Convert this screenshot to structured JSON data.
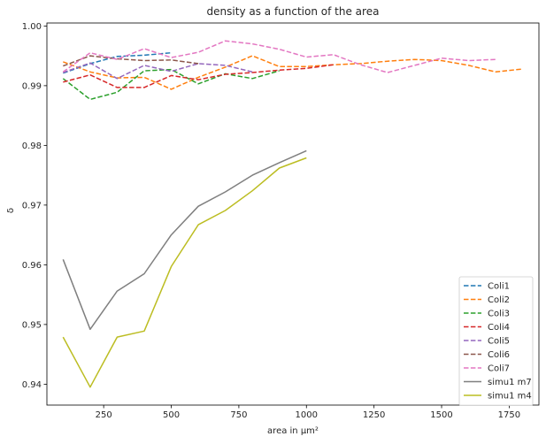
{
  "chart_data": {
    "type": "line",
    "title": "density as a function of the area",
    "xlabel": "area in μm²",
    "ylabel": "δ",
    "xlim": [
      40,
      1860
    ],
    "ylim": [
      0.9365,
      1.0005
    ],
    "xticks": [
      250,
      500,
      750,
      1000,
      1250,
      1500,
      1750
    ],
    "xtick_labels": [
      "250",
      "500",
      "750",
      "1000",
      "1250",
      "1500",
      "1750"
    ],
    "yticks": [
      0.94,
      0.95,
      0.96,
      0.97,
      0.98,
      0.99,
      1.0
    ],
    "ytick_labels": [
      "0.94",
      "0.95",
      "0.96",
      "0.97",
      "0.98",
      "0.99",
      "1.00"
    ],
    "grid": false,
    "legend_position": "lower-right",
    "series": [
      {
        "name": "Coli1",
        "style": "dashed",
        "color": "#1f77b4",
        "x": [
          100,
          200,
          300,
          400,
          500
        ],
        "y": [
          0.9921,
          0.9937,
          0.9949,
          0.9951,
          0.9955
        ]
      },
      {
        "name": "Coli2",
        "style": "dashed",
        "color": "#ff7f0e",
        "x": [
          100,
          200,
          300,
          400,
          500,
          600,
          700,
          800,
          900,
          1000,
          1100,
          1200,
          1300,
          1400,
          1500,
          1600,
          1700,
          1800
        ],
        "y": [
          0.994,
          0.9923,
          0.9913,
          0.9914,
          0.9894,
          0.9914,
          0.9931,
          0.995,
          0.9932,
          0.9932,
          0.9935,
          0.9937,
          0.9941,
          0.9944,
          0.9942,
          0.9934,
          0.9923,
          0.9928
        ]
      },
      {
        "name": "Coli3",
        "style": "dashed",
        "color": "#2ca02c",
        "x": [
          100,
          200,
          300,
          400,
          500,
          600,
          700,
          800,
          900
        ],
        "y": [
          0.9912,
          0.9877,
          0.9889,
          0.9925,
          0.9927,
          0.9903,
          0.992,
          0.9912,
          0.9925
        ]
      },
      {
        "name": "Coli4",
        "style": "dashed",
        "color": "#d62728",
        "x": [
          100,
          200,
          300,
          400,
          500,
          600,
          700,
          800,
          900,
          1000,
          1100
        ],
        "y": [
          0.9906,
          0.9918,
          0.9897,
          0.9897,
          0.9917,
          0.991,
          0.9919,
          0.9922,
          0.9926,
          0.9929,
          0.9935
        ]
      },
      {
        "name": "Coli5",
        "style": "dashed",
        "color": "#9467bd",
        "x": [
          100,
          200,
          300,
          400,
          500,
          600,
          700,
          800
        ],
        "y": [
          0.9922,
          0.9938,
          0.9912,
          0.9934,
          0.9924,
          0.9937,
          0.9934,
          0.9923
        ]
      },
      {
        "name": "Coli6",
        "style": "dashed",
        "color": "#8c564b",
        "x": [
          100,
          200,
          300,
          400,
          500,
          600
        ],
        "y": [
          0.9933,
          0.995,
          0.9945,
          0.9942,
          0.9943,
          0.9937
        ]
      },
      {
        "name": "Coli7",
        "style": "dashed",
        "color": "#e377c2",
        "x": [
          100,
          200,
          300,
          400,
          500,
          600,
          700,
          800,
          900,
          1000,
          1100,
          1200,
          1300,
          1400,
          1500,
          1600,
          1700
        ],
        "y": [
          0.9923,
          0.9955,
          0.9944,
          0.9962,
          0.9947,
          0.9956,
          0.9975,
          0.997,
          0.9961,
          0.9948,
          0.9952,
          0.9935,
          0.9922,
          0.9934,
          0.9946,
          0.9942,
          0.9944
        ]
      },
      {
        "name": "simu1 m7",
        "style": "solid",
        "color": "#7f7f7f",
        "x": [
          100,
          200,
          300,
          400,
          500,
          600,
          700,
          800,
          900,
          1000
        ],
        "y": [
          0.9609,
          0.9492,
          0.9556,
          0.9585,
          0.965,
          0.9698,
          0.9722,
          0.975,
          0.9771,
          0.9791
        ]
      },
      {
        "name": "simu1 m4",
        "style": "solid",
        "color": "#bcbd22",
        "x": [
          100,
          200,
          300,
          400,
          500,
          600,
          700,
          800,
          900,
          1000
        ],
        "y": [
          0.9479,
          0.9395,
          0.9479,
          0.9489,
          0.9597,
          0.9667,
          0.9691,
          0.9724,
          0.9762,
          0.9779
        ]
      }
    ]
  }
}
